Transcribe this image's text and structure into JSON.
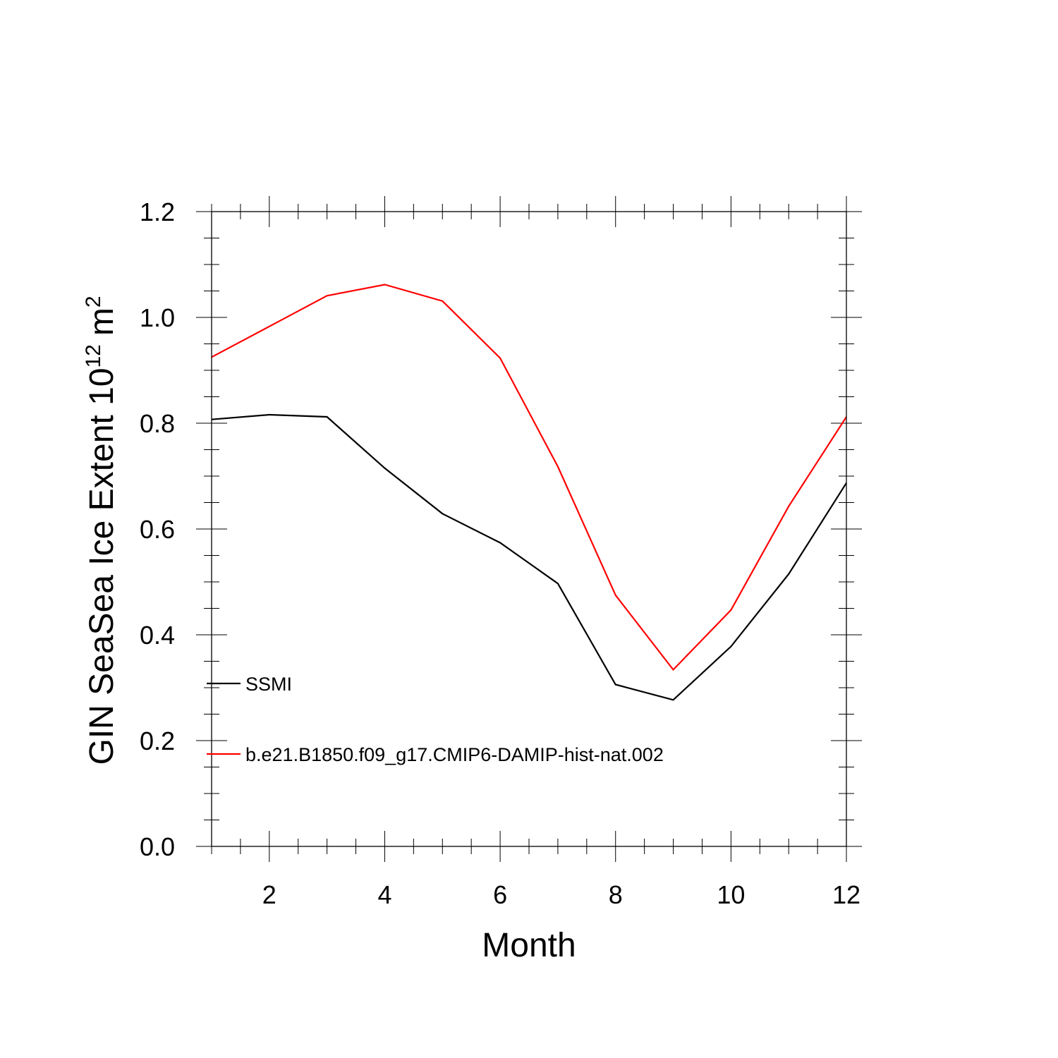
{
  "chart_data": {
    "type": "line",
    "title": "",
    "xlabel": "Month",
    "ylabel": {
      "main": "GIN SeaSea Ice Extent 10",
      "exponent": "12",
      "unit": "m",
      "unit_exponent": "2"
    },
    "xlim": [
      1,
      12
    ],
    "ylim": [
      0,
      1.2
    ],
    "xticks": [
      2,
      4,
      6,
      8,
      10,
      12
    ],
    "xtick_labels": [
      "2",
      "4",
      "6",
      "8",
      "10",
      "12"
    ],
    "yticks": [
      0,
      0.2,
      0.4,
      0.6,
      0.8,
      1.0,
      1.2
    ],
    "ytick_labels": [
      "0.0",
      "0.2",
      "0.4",
      "0.6",
      "0.8",
      "1.0",
      "1.2"
    ],
    "grid": false,
    "legend_position": "lower-left",
    "x": [
      1,
      2,
      3,
      4,
      5,
      6,
      7,
      8,
      9,
      10,
      11,
      12
    ],
    "series": [
      {
        "name": "SSMI",
        "color": "#000000",
        "values": [
          0.807,
          0.816,
          0.812,
          0.715,
          0.629,
          0.574,
          0.497,
          0.306,
          0.277,
          0.378,
          0.515,
          0.687
        ]
      },
      {
        "name": "b.e21.B1850.f09_g17.CMIP6-DAMIP-hist-nat.002",
        "color": "#ff0000",
        "values": [
          0.925,
          0.983,
          1.041,
          1.062,
          1.031,
          0.923,
          0.718,
          0.475,
          0.334,
          0.447,
          0.643,
          0.812
        ]
      }
    ]
  }
}
